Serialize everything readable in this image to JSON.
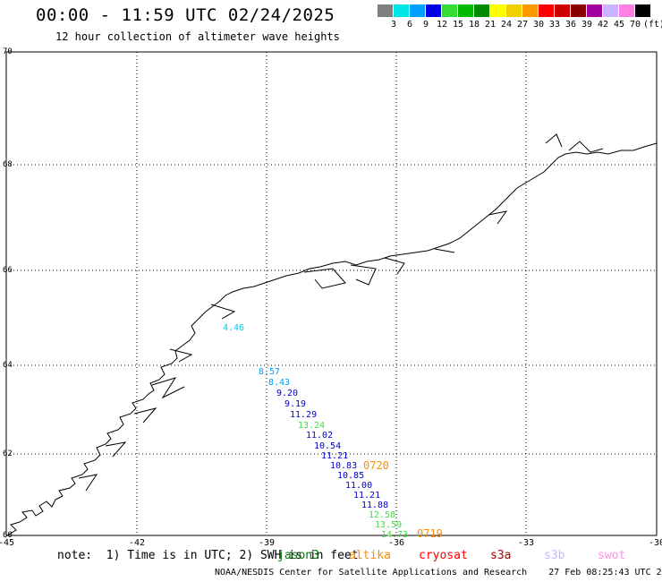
{
  "header": {
    "title": "00:00 - 11:59 UTC 02/24/2025",
    "subtitle": "12 hour collection of altimeter wave heights"
  },
  "colorbar": {
    "unit": "(ft)",
    "bins": [
      {
        "label": "3",
        "color": "#808080"
      },
      {
        "label": "6",
        "color": "#00e5e5"
      },
      {
        "label": "9",
        "color": "#00a0ff"
      },
      {
        "label": "12",
        "color": "#0000e6"
      },
      {
        "label": "15",
        "color": "#33dd33"
      },
      {
        "label": "18",
        "color": "#00bb00"
      },
      {
        "label": "21",
        "color": "#008800"
      },
      {
        "label": "24",
        "color": "#ffff00"
      },
      {
        "label": "27",
        "color": "#f0d000"
      },
      {
        "label": "30",
        "color": "#ff9900"
      },
      {
        "label": "33",
        "color": "#ff0000"
      },
      {
        "label": "36",
        "color": "#cc0000"
      },
      {
        "label": "39",
        "color": "#880000"
      },
      {
        "label": "42",
        "color": "#a000a0"
      },
      {
        "label": "45",
        "color": "#c8b4ff"
      },
      {
        "label": "70",
        "color": "#ff80e0"
      },
      {
        "label": "",
        "color": "#000000"
      }
    ]
  },
  "map": {
    "lat_labels": [
      "70",
      "68",
      "66",
      "64",
      "62",
      "60"
    ],
    "lon_labels": [
      "-45",
      "-42",
      "-39",
      "-36",
      "-33",
      "-30"
    ],
    "lat_range": [
      60,
      70
    ],
    "lon_range": [
      -45,
      -30
    ]
  },
  "observations": [
    {
      "text": "4.46",
      "color": "#00c8e6"
    },
    {
      "text": "8.57",
      "color": "#00a0ff"
    },
    {
      "text": "8.43",
      "color": "#00a0ff"
    },
    {
      "text": "9.20",
      "color": "#0000cc"
    },
    {
      "text": "9.19",
      "color": "#0000cc"
    },
    {
      "text": "11.29",
      "color": "#0000cc"
    },
    {
      "text": "13.24",
      "color": "#44dd44"
    },
    {
      "text": "11.02",
      "color": "#0000cc"
    },
    {
      "text": "10.54",
      "color": "#0000cc"
    },
    {
      "text": "11.21",
      "color": "#0000cc"
    },
    {
      "text": "10.83",
      "color": "#0000cc"
    },
    {
      "text": "10.85",
      "color": "#0000cc"
    },
    {
      "text": "11.00",
      "color": "#0000cc"
    },
    {
      "text": "11.21",
      "color": "#0000cc"
    },
    {
      "text": "11.88",
      "color": "#0000cc"
    },
    {
      "text": "12.58",
      "color": "#44dd44"
    },
    {
      "text": "13.59",
      "color": "#44dd44"
    },
    {
      "text": "14.73",
      "color": "#44dd44"
    }
  ],
  "pass_labels": [
    {
      "text": "0720",
      "color": "#ff8c00"
    },
    {
      "text": "0719",
      "color": "#ff8c00"
    }
  ],
  "note": "note:  1) Time is in UTC; 2) SWH is in feet",
  "legend": [
    {
      "name": "jason3",
      "color": "#008000"
    },
    {
      "name": "altika",
      "color": "#ff8c00"
    },
    {
      "name": "cryosat",
      "color": "#ff0000"
    },
    {
      "name": "s3a",
      "color": "#aa0000"
    },
    {
      "name": "s3b",
      "color": "#c8b4ff"
    },
    {
      "name": "swot",
      "color": "#ff90e0"
    }
  ],
  "footer": {
    "source": "NOAA/NESDIS Center for Satellite Applications and Research",
    "timestamp": "27 Feb 08:25:43 UTC 2025"
  }
}
